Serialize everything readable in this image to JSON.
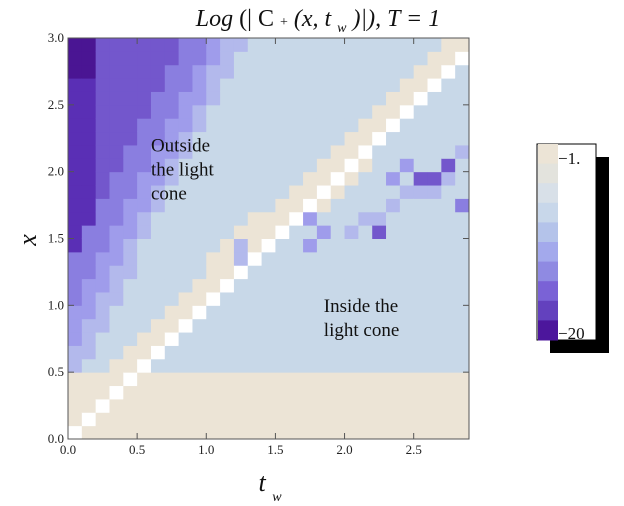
{
  "chart_data": {
    "type": "heatmap",
    "title": {
      "log": "Log",
      "open": " (|",
      "c": "C",
      "plus": "+",
      "args_open": " (x, t",
      "sub": "w",
      "args_close": ")|), T = 1"
    },
    "xlabel": {
      "main": "t",
      "sub": "w"
    },
    "ylabel": "x",
    "xlim": [
      0,
      2.9
    ],
    "ylim": [
      0,
      3.0
    ],
    "x_ticks": [
      "0.0",
      "0.5",
      "1.0",
      "1.5",
      "2.0",
      "2.5"
    ],
    "y_ticks": [
      "0.0",
      "0.5",
      "1.0",
      "1.5",
      "2.0",
      "2.5",
      "3.0"
    ],
    "grid": {
      "cols": 29,
      "rows": 30,
      "cell_width": 0.1,
      "cell_height": 0.1
    },
    "annotations": [
      {
        "lines": [
          "Outside",
          "the light",
          "cone"
        ],
        "x": 0.6,
        "y": 2.15
      },
      {
        "lines": [
          "Inside the",
          "light cone"
        ],
        "x": 1.85,
        "y": 0.95
      }
    ],
    "legend": {
      "placement": "right",
      "top_label": "−1.",
      "bottom_label": "−20",
      "colors": [
        "#ece4d6",
        "#e3e3dd",
        "#d8e0e8",
        "#c8d7ea",
        "#b4c3ea",
        "#a3a9ec",
        "#8f8ae2",
        "#7a62d6",
        "#6341be",
        "#4c169c"
      ]
    },
    "palette": {
      "white": "#ffffff",
      "beige": "#ece4d6",
      "lightblue": "#c8d8e8",
      "lavender": "#b3b9ec",
      "periwinkle": "#9f9ceb",
      "violet": "#8a7ee0",
      "purple": "#7357cc",
      "deep_purple": "#5a2fb5",
      "darkest": "#4a1593"
    }
  }
}
